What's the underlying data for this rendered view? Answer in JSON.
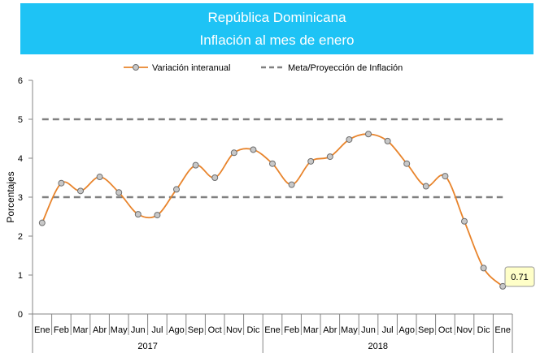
{
  "chart_data": {
    "type": "line",
    "title": "República Dominicana",
    "subtitle": "Inflación al mes de enero",
    "ylabel": "Porcentajes",
    "xlabel": "",
    "ylim": [
      0,
      6
    ],
    "yticks": [
      0,
      1,
      2,
      3,
      4,
      5,
      6
    ],
    "grid": false,
    "legend_position": "top",
    "categories": [
      "Ene",
      "Feb",
      "Mar",
      "Abr",
      "May",
      "Jun",
      "Jul",
      "Ago",
      "Sep",
      "Oct",
      "Nov",
      "Dic",
      "Ene",
      "Feb",
      "Mar",
      "Abr",
      "May",
      "Jun",
      "Jul",
      "Ago",
      "Sep",
      "Oct",
      "Nov",
      "Dic",
      "Ene"
    ],
    "year_groups": [
      {
        "label": "2017",
        "start": 0,
        "end": 11
      },
      {
        "label": "2018",
        "start": 12,
        "end": 23
      }
    ],
    "series": [
      {
        "name": "Variación interanual",
        "color": "#e8842c",
        "marker_fill": "#c8c8c8",
        "style": "smooth-line-with-markers",
        "values": [
          2.34,
          3.36,
          3.16,
          3.52,
          3.12,
          2.56,
          2.54,
          3.2,
          3.82,
          3.5,
          4.14,
          4.22,
          3.86,
          3.32,
          3.92,
          4.04,
          4.48,
          4.62,
          4.44,
          3.86,
          3.28,
          3.54,
          2.38,
          1.18,
          0.71
        ]
      },
      {
        "name": "Meta/Proyección de Inflación",
        "color": "#808080",
        "style": "dashed",
        "bands": [
          3,
          5
        ]
      }
    ],
    "annotation": {
      "text": "0.71",
      "index": 24
    }
  }
}
